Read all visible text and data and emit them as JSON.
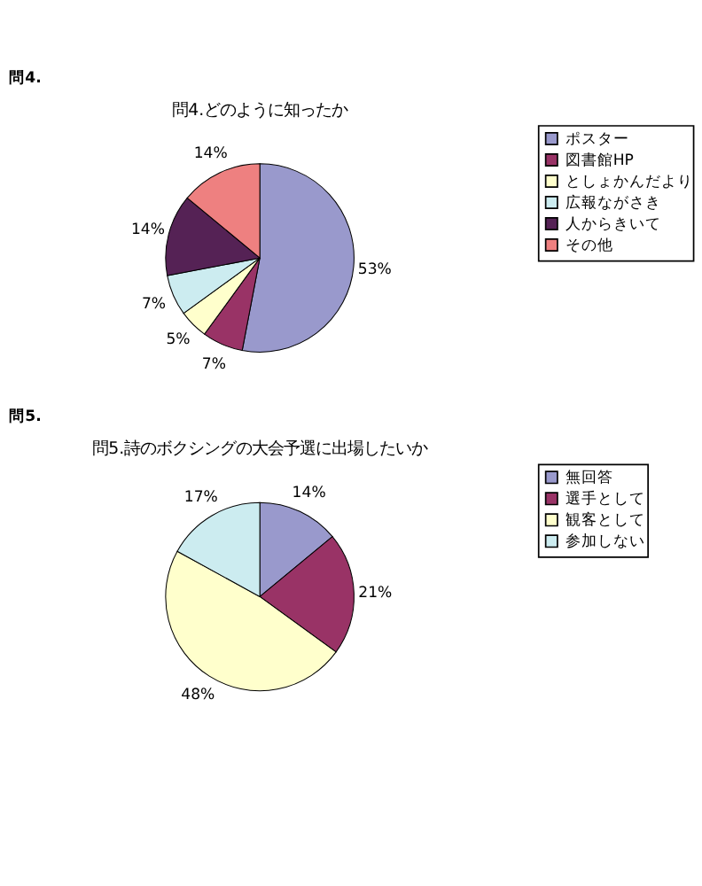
{
  "chart_data": [
    {
      "type": "pie",
      "title": "問4.どのように知ったか",
      "annotations": [
        "問4."
      ],
      "categories": [
        "ポスター",
        "図書館HP",
        "としょかんだより",
        "広報ながさき",
        "人からきいて",
        "その他"
      ],
      "values": [
        53,
        7,
        5,
        7,
        14,
        14
      ],
      "colors": [
        "#9999cc",
        "#993366",
        "#ffffcc",
        "#ccecf0",
        "#552255",
        "#ee8080"
      ],
      "value_labels": [
        "53%",
        "7%",
        "5%",
        "7%",
        "14%",
        "14%"
      ],
      "legend": "right"
    },
    {
      "type": "pie",
      "title": "問5.詩のボクシングの大会予選に出場したいか",
      "annotations": [
        "問5."
      ],
      "categories": [
        "無回答",
        "選手として",
        "観客として",
        "参加しない"
      ],
      "values": [
        14,
        21,
        48,
        17
      ],
      "colors": [
        "#9999cc",
        "#993366",
        "#ffffcc",
        "#ccecf0"
      ],
      "value_labels": [
        "14%",
        "21%",
        "48%",
        "17%"
      ],
      "legend": "right"
    }
  ]
}
